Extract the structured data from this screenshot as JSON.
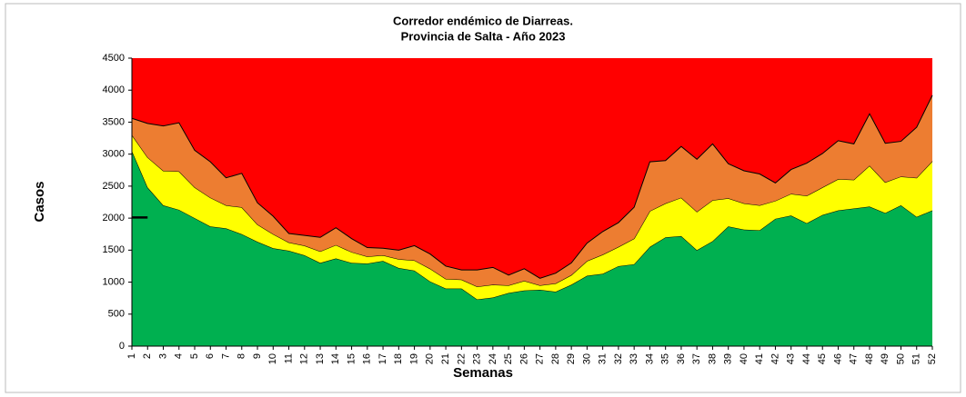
{
  "chart_data": {
    "type": "area",
    "title": [
      "Corredor endémico de Diarreas.",
      "Provincia de Salta - Año 2023"
    ],
    "y_label": "Casos",
    "x_label": "Semanas",
    "x": [
      1,
      2,
      3,
      4,
      5,
      6,
      7,
      8,
      9,
      10,
      11,
      12,
      13,
      14,
      15,
      16,
      17,
      18,
      19,
      20,
      21,
      22,
      23,
      24,
      25,
      26,
      27,
      28,
      29,
      30,
      31,
      32,
      33,
      34,
      35,
      36,
      37,
      38,
      39,
      40,
      41,
      42,
      43,
      44,
      45,
      46,
      47,
      48,
      49,
      50,
      51,
      52
    ],
    "xlim": [
      1,
      52
    ],
    "ylim": [
      0,
      4500
    ],
    "yticks": [
      0,
      500,
      1000,
      1500,
      2000,
      2500,
      3000,
      3500,
      4000,
      4500
    ],
    "plot_background": "#ff0000",
    "series": [
      {
        "color": "#00b050",
        "values": [
          3050,
          2480,
          2200,
          2130,
          2000,
          1870,
          1840,
          1750,
          1630,
          1530,
          1490,
          1420,
          1300,
          1370,
          1300,
          1290,
          1330,
          1220,
          1180,
          1010,
          900,
          900,
          730,
          760,
          830,
          870,
          880,
          850,
          960,
          1100,
          1130,
          1250,
          1280,
          1550,
          1700,
          1720,
          1500,
          1640,
          1870,
          1820,
          1810,
          1990,
          2040,
          1920,
          2050,
          2120,
          2150,
          2180,
          2080,
          2200,
          2020,
          2120
        ]
      },
      {
        "color": "#ffff00",
        "values": [
          3300,
          2950,
          2740,
          2730,
          2480,
          2320,
          2200,
          2170,
          1900,
          1750,
          1620,
          1570,
          1480,
          1580,
          1470,
          1400,
          1420,
          1360,
          1340,
          1210,
          1050,
          1040,
          930,
          960,
          950,
          1020,
          950,
          980,
          1110,
          1330,
          1430,
          1550,
          1680,
          2110,
          2230,
          2320,
          2100,
          2280,
          2310,
          2230,
          2200,
          2270,
          2380,
          2350,
          2480,
          2610,
          2600,
          2820,
          2560,
          2650,
          2630,
          2890
        ]
      },
      {
        "color": "#ed7d31",
        "values": [
          3560,
          3480,
          3440,
          3490,
          3060,
          2880,
          2630,
          2700,
          2240,
          2030,
          1760,
          1730,
          1700,
          1850,
          1680,
          1540,
          1530,
          1500,
          1570,
          1440,
          1250,
          1190,
          1190,
          1230,
          1110,
          1210,
          1060,
          1140,
          1300,
          1610,
          1790,
          1930,
          2170,
          2880,
          2900,
          3120,
          2920,
          3160,
          2850,
          2740,
          2690,
          2550,
          2760,
          2860,
          3010,
          3210,
          3160,
          3630,
          3170,
          3200,
          3420,
          3920
        ]
      }
    ],
    "current": {
      "type": "line",
      "color": "#000000",
      "values": [
        2010,
        2010,
        null,
        null,
        null,
        null,
        null,
        null,
        null,
        null,
        null,
        null,
        null,
        null,
        null,
        null,
        null,
        null,
        null,
        null,
        null,
        null,
        null,
        null,
        null,
        null,
        null,
        null,
        null,
        null,
        null,
        null,
        null,
        null,
        null,
        null,
        null,
        null,
        null,
        null,
        null,
        null,
        null,
        null,
        null,
        null,
        null,
        null,
        null,
        null,
        null,
        null
      ]
    }
  }
}
